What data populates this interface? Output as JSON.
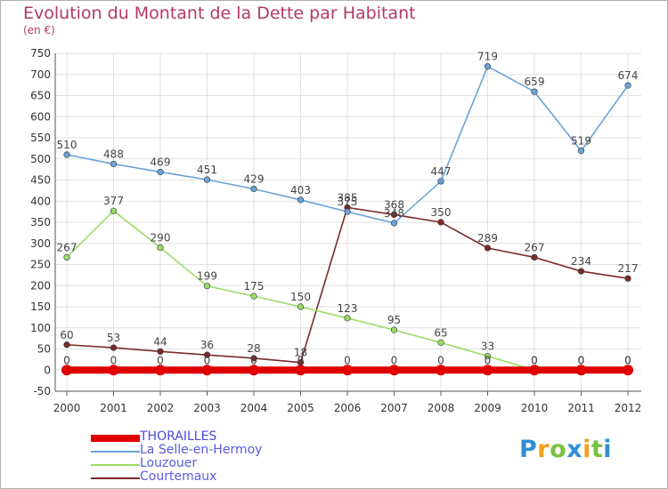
{
  "chart_data": {
    "type": "line",
    "title": "Evolution du Montant de la Dette par Habitant",
    "unit": "(en €)",
    "x": [
      "2000",
      "2001",
      "2002",
      "2003",
      "2004",
      "2005",
      "2006",
      "2007",
      "2008",
      "2009",
      "2010",
      "2011",
      "2012"
    ],
    "ylim": [
      -50,
      750
    ],
    "yticks": [
      -50,
      0,
      50,
      100,
      150,
      200,
      250,
      300,
      350,
      400,
      450,
      500,
      550,
      600,
      650,
      700,
      750
    ],
    "grid": true,
    "legend_position": "bottom-left",
    "series": [
      {
        "name": "THORAILLES",
        "color": "#e00000",
        "values": [
          0,
          0,
          0,
          0,
          0,
          0,
          0,
          0,
          0,
          0,
          0,
          0,
          0
        ]
      },
      {
        "name": "La Selle-en-Hermoy",
        "color": "#6aa3d8",
        "values": [
          510,
          488,
          469,
          451,
          429,
          403,
          375,
          348,
          447,
          719,
          659,
          519,
          674
        ]
      },
      {
        "name": "Louzouer",
        "color": "#99dd66",
        "values": [
          267,
          377,
          290,
          199,
          175,
          150,
          123,
          95,
          65,
          33,
          0,
          0,
          0
        ]
      },
      {
        "name": "Courtemaux",
        "color": "#7a2a2a",
        "values": [
          60,
          53,
          44,
          36,
          28,
          18,
          385,
          368,
          350,
          289,
          267,
          234,
          217
        ]
      }
    ]
  },
  "logo": {
    "letters": [
      "P",
      "r",
      "o",
      "x",
      "i",
      "t",
      "i"
    ],
    "colors": [
      "#2f8fd6",
      "#f0a020",
      "#7cc043",
      "#2f8fd6",
      "#f0a020",
      "#7cc043",
      "#2f8fd6"
    ]
  }
}
